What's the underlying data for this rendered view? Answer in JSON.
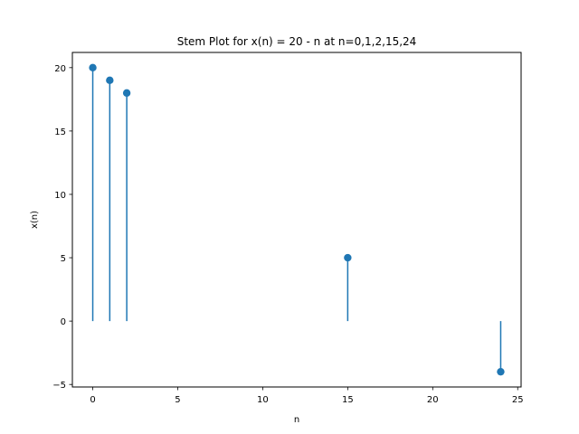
{
  "chart_data": {
    "type": "stem",
    "title": "Stem Plot for x(n) = 20 - n at n=0,1,2,15,24",
    "xlabel": "n",
    "ylabel": "x(n)",
    "xlim": [
      -1.2,
      25.2
    ],
    "ylim": [
      -5.2,
      21.2
    ],
    "xticks": [
      0,
      5,
      10,
      15,
      20,
      25
    ],
    "yticks": [
      -5,
      0,
      5,
      10,
      15,
      20
    ],
    "baseline": 0,
    "grid": false,
    "color": "#1f77b4",
    "series": [
      {
        "x": [
          0,
          1,
          2,
          15,
          24
        ],
        "y": [
          20,
          19,
          18,
          5,
          -4
        ]
      }
    ]
  }
}
